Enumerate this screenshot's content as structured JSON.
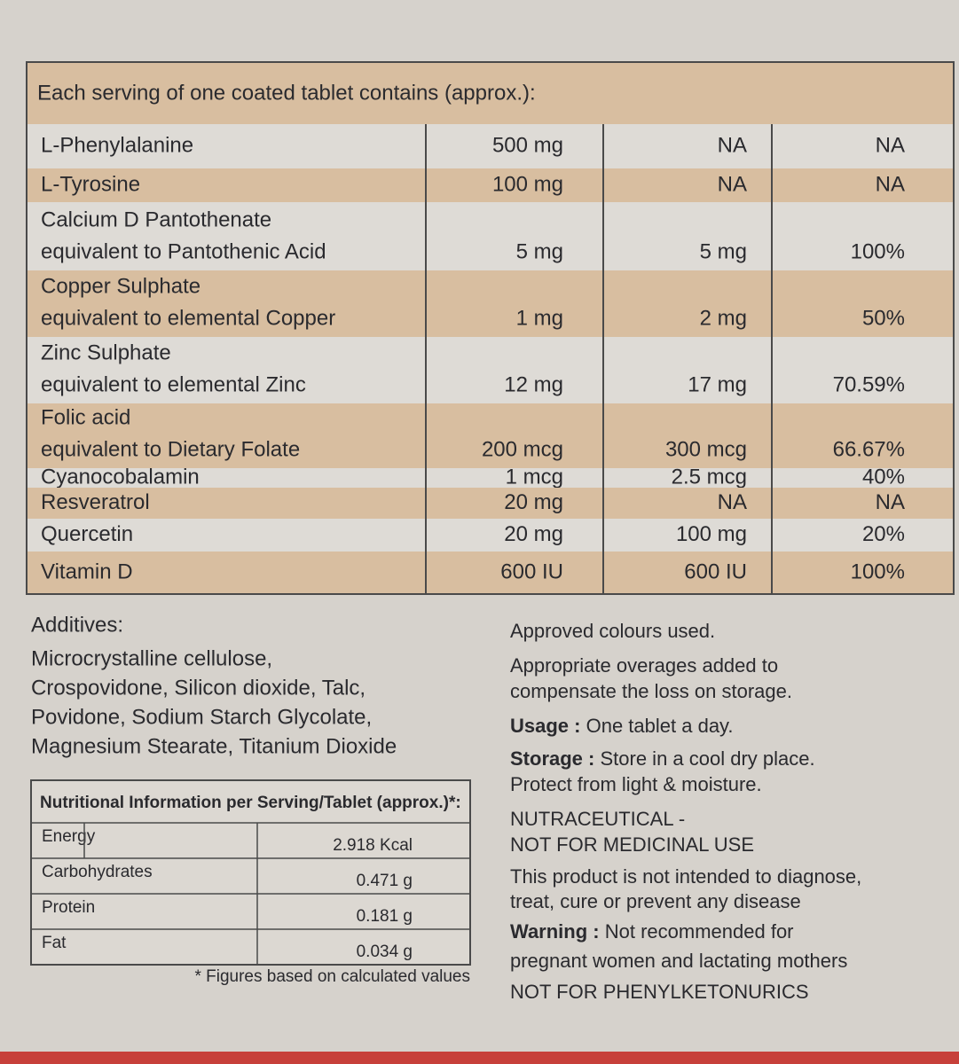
{
  "table": {
    "title": "Each serving of one coated tablet contains (approx.):",
    "rows": [
      {
        "name": [
          "L-Phenylalanine"
        ],
        "cells": [
          "500 mg",
          "NA",
          "NA"
        ]
      },
      {
        "name": [
          "L-Tyrosine"
        ],
        "cells": [
          "100 mg",
          "NA",
          "NA"
        ]
      },
      {
        "name": [
          "Calcium D Pantothenate",
          "equivalent to Pantothenic Acid"
        ],
        "cells": [
          "5 mg",
          "5 mg",
          "100%"
        ]
      },
      {
        "name": [
          "Copper Sulphate",
          "equivalent to elemental Copper"
        ],
        "cells": [
          "1 mg",
          "2 mg",
          "50%"
        ]
      },
      {
        "name": [
          "Zinc Sulphate",
          "equivalent to elemental Zinc"
        ],
        "cells": [
          "12 mg",
          "17 mg",
          "70.59%"
        ]
      },
      {
        "name": [
          "Folic acid",
          "equivalent to Dietary Folate"
        ],
        "cells": [
          "200 mcg",
          "300 mcg",
          "66.67%"
        ]
      },
      {
        "name": [
          "Cyanocobalamin"
        ],
        "cells": [
          "1 mcg",
          "2.5 mcg",
          "40%"
        ]
      },
      {
        "name": [
          "Resveratrol"
        ],
        "cells": [
          "20 mg",
          "NA",
          "NA"
        ]
      },
      {
        "name": [
          "Quercetin"
        ],
        "cells": [
          "20 mg",
          "100 mg",
          "20%"
        ]
      },
      {
        "name": [
          "Vitamin D"
        ],
        "cells": [
          "600 IU",
          "600 IU",
          "100%"
        ]
      }
    ]
  },
  "additives": {
    "title": "Additives:",
    "lines": [
      "Microcrystalline cellulose,",
      "Crospovidone, Silicon dioxide, Talc,",
      "Povidone, Sodium Starch Glycolate,",
      "Magnesium Stearate, Titanium Dioxide"
    ]
  },
  "nutrition": {
    "title": "Nutritional Information per Serving/Tablet (approx.)*:",
    "rows": [
      [
        "Energy",
        "2.918 Kcal"
      ],
      [
        "Carbohydrates",
        "0.471 g"
      ],
      [
        "Protein",
        "0.181 g"
      ],
      [
        "Fat",
        "0.034 g"
      ]
    ],
    "footnote": "* Figures based on calculated values"
  },
  "notes": [
    {
      "lines": [
        "Approved colours used."
      ]
    },
    {
      "lines": [
        "Appropriate overages added to",
        "compensate the loss on storage."
      ]
    },
    {
      "label": "Usage :",
      "lines": [
        "One tablet a day."
      ]
    },
    {
      "label": "Storage :",
      "lines": [
        "Store in a cool dry place.",
        "Protect from light & moisture."
      ]
    },
    {
      "lines": [
        "NUTRACEUTICAL -",
        "NOT FOR MEDICINAL USE"
      ]
    },
    {
      "lines": [
        "This product is not intended to diagnose,",
        "treat, cure or prevent any disease"
      ]
    },
    {
      "label": "Warning :",
      "lines": [
        "Not recommended for",
        "pregnant women and lactating mothers"
      ]
    },
    {
      "lines": [
        "NOT FOR PHENYLKETONURICS"
      ]
    }
  ]
}
